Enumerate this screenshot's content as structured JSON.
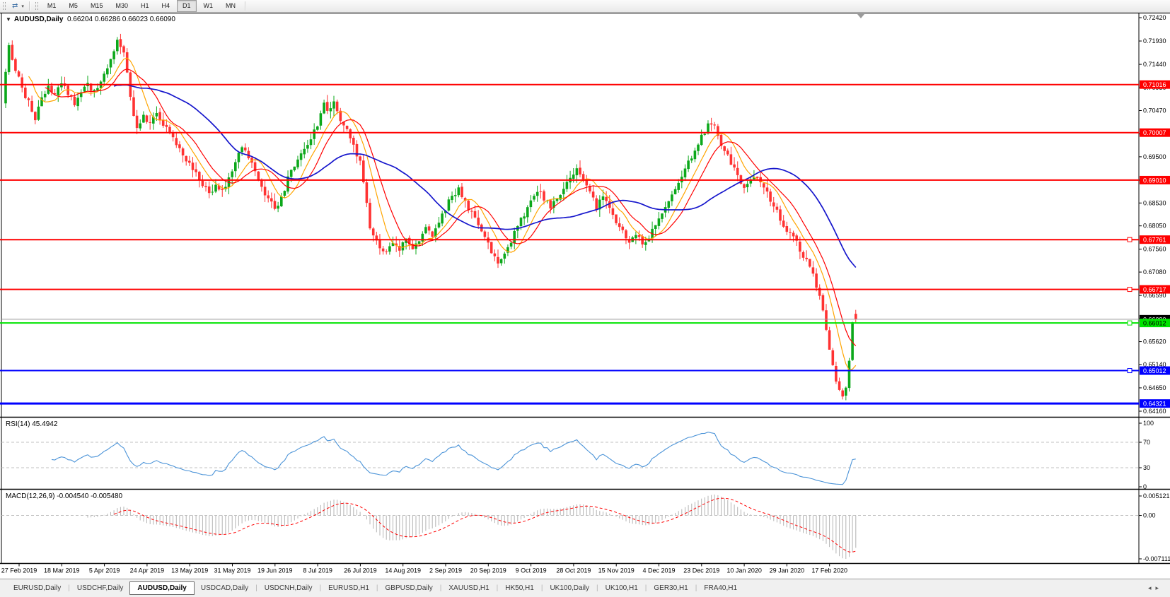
{
  "toolbar": {
    "tool_icon": "⇄",
    "dropdown_caret": "▾",
    "timeframes": [
      {
        "label": "M1",
        "active": false
      },
      {
        "label": "M5",
        "active": false
      },
      {
        "label": "M15",
        "active": false
      },
      {
        "label": "M30",
        "active": false
      },
      {
        "label": "H1",
        "active": false
      },
      {
        "label": "H4",
        "active": false
      },
      {
        "label": "D1",
        "active": true
      },
      {
        "label": "W1",
        "active": false
      },
      {
        "label": "MN",
        "active": false
      }
    ]
  },
  "chart_header": {
    "dropdown_glyph": "▼",
    "title": "AUDUSD,Daily",
    "quote_text": "0.66204 0.66286 0.66023 0.66090"
  },
  "panes": {
    "rsi_label": "RSI(14) 45.4942",
    "macd_label": "MACD(12,26,9) -0.004540 -0.005480"
  },
  "tabs": {
    "items": [
      {
        "label": "EURUSD,Daily",
        "active": false
      },
      {
        "label": "USDCHF,Daily",
        "active": false
      },
      {
        "label": "AUDUSD,Daily",
        "active": true
      },
      {
        "label": "USDCAD,Daily",
        "active": false
      },
      {
        "label": "USDCNH,Daily",
        "active": false
      },
      {
        "label": "EURUSD,H1",
        "active": false
      },
      {
        "label": "GBPUSD,Daily",
        "active": false
      },
      {
        "label": "XAUUSD,H1",
        "active": false
      },
      {
        "label": "HK50,H1",
        "active": false
      },
      {
        "label": "UK100,Daily",
        "active": false
      },
      {
        "label": "UK100,H1",
        "active": false
      },
      {
        "label": "GER30,H1",
        "active": false
      },
      {
        "label": "FRA40,H1",
        "active": false
      }
    ],
    "nav_left": "◂",
    "nav_right": "▸"
  },
  "chart_data": {
    "type": "candlestick",
    "symbol": "AUDUSD",
    "period": "Daily",
    "quote": {
      "open": 0.66204,
      "high": 0.66286,
      "low": 0.66023,
      "close": 0.6609
    },
    "current_price": 0.6609,
    "candle_count": 260,
    "y_axis_ticks": [
      "0.72420",
      "0.71930",
      "0.71440",
      "0.70950",
      "0.70470",
      "0.69980",
      "0.69500",
      "0.69010",
      "0.68530",
      "0.68050",
      "0.67560",
      "0.67080",
      "0.66590",
      "0.66100",
      "0.65620",
      "0.65140",
      "0.64650",
      "0.64160"
    ],
    "x_axis_dates": [
      "27 Feb 2019",
      "18 Mar 2019",
      "5 Apr 2019",
      "24 Apr 2019",
      "13 May 2019",
      "31 May 2019",
      "19 Jun 2019",
      "8 Jul 2019",
      "26 Jul 2019",
      "14 Aug 2019",
      "2 Sep 2019",
      "20 Sep 2019",
      "9 Oct 2019",
      "28 Oct 2019",
      "15 Nov 2019",
      "4 Dec 2019",
      "23 Dec 2019",
      "10 Jan 2020",
      "29 Jan 2020",
      "17 Feb 2020"
    ],
    "horizontal_lines": [
      {
        "price": 0.71016,
        "label": "0.71016",
        "color": "#ff0000",
        "text": "#ffffff",
        "width": 2,
        "handle": false
      },
      {
        "price": 0.70007,
        "label": "0.70007",
        "color": "#ff0000",
        "text": "#ffffff",
        "width": 2,
        "handle": false
      },
      {
        "price": 0.6901,
        "label": "0.69010",
        "color": "#ff0000",
        "text": "#ffffff",
        "width": 2,
        "handle": false
      },
      {
        "price": 0.67761,
        "label": "0.67761",
        "color": "#ff0000",
        "text": "#ffffff",
        "width": 2,
        "handle": true
      },
      {
        "price": 0.66717,
        "label": "0.66717",
        "color": "#ff0000",
        "text": "#ffffff",
        "width": 2,
        "handle": true
      },
      {
        "price": 0.66012,
        "label": "0.66012",
        "color": "#00e400",
        "text": "#000000",
        "width": 2,
        "handle": true
      },
      {
        "price": 0.65012,
        "label": "0.65012",
        "color": "#0000ff",
        "text": "#ffffff",
        "width": 2,
        "handle": true
      },
      {
        "price": 0.64321,
        "label": "0.64321",
        "color": "#0000ff",
        "text": "#ffffff",
        "width": 3,
        "handle": false
      }
    ],
    "price_anchors": [
      [
        0,
        0.7135
      ],
      [
        1,
        0.719
      ],
      [
        3,
        0.7128
      ],
      [
        5,
        0.7098
      ],
      [
        7,
        0.7062
      ],
      [
        9,
        0.7032
      ],
      [
        11,
        0.7068
      ],
      [
        13,
        0.7094
      ],
      [
        15,
        0.7076
      ],
      [
        17,
        0.7104
      ],
      [
        19,
        0.7086
      ],
      [
        21,
        0.7062
      ],
      [
        23,
        0.7082
      ],
      [
        25,
        0.71
      ],
      [
        27,
        0.7088
      ],
      [
        29,
        0.7108
      ],
      [
        31,
        0.714
      ],
      [
        33,
        0.7176
      ],
      [
        34,
        0.7196
      ],
      [
        36,
        0.717
      ],
      [
        37,
        0.7128
      ],
      [
        38,
        0.7076
      ],
      [
        40,
        0.7008
      ],
      [
        42,
        0.7032
      ],
      [
        44,
        0.7018
      ],
      [
        46,
        0.7042
      ],
      [
        48,
        0.7022
      ],
      [
        50,
        0.7
      ],
      [
        52,
        0.6978
      ],
      [
        54,
        0.6952
      ],
      [
        56,
        0.694
      ],
      [
        58,
        0.6918
      ],
      [
        60,
        0.6892
      ],
      [
        62,
        0.6872
      ],
      [
        64,
        0.6894
      ],
      [
        66,
        0.6874
      ],
      [
        68,
        0.6902
      ],
      [
        70,
        0.6942
      ],
      [
        72,
        0.6972
      ],
      [
        74,
        0.6948
      ],
      [
        76,
        0.6914
      ],
      [
        78,
        0.6886
      ],
      [
        80,
        0.6862
      ],
      [
        82,
        0.684
      ],
      [
        84,
        0.6868
      ],
      [
        86,
        0.6902
      ],
      [
        88,
        0.6932
      ],
      [
        90,
        0.6958
      ],
      [
        92,
        0.698
      ],
      [
        94,
        0.7004
      ],
      [
        96,
        0.7036
      ],
      [
        97,
        0.7058
      ],
      [
        98,
        0.704
      ],
      [
        100,
        0.706
      ],
      [
        102,
        0.7032
      ],
      [
        104,
        0.7002
      ],
      [
        106,
        0.697
      ],
      [
        108,
        0.694
      ],
      [
        109,
        0.6898
      ],
      [
        110,
        0.6852
      ],
      [
        111,
        0.6806
      ],
      [
        112,
        0.678
      ],
      [
        114,
        0.6762
      ],
      [
        116,
        0.6744
      ],
      [
        118,
        0.677
      ],
      [
        120,
        0.6756
      ],
      [
        122,
        0.6774
      ],
      [
        124,
        0.6752
      ],
      [
        126,
        0.6778
      ],
      [
        128,
        0.6802
      ],
      [
        130,
        0.6788
      ],
      [
        132,
        0.6814
      ],
      [
        134,
        0.6842
      ],
      [
        136,
        0.6866
      ],
      [
        138,
        0.6882
      ],
      [
        140,
        0.6858
      ],
      [
        142,
        0.683
      ],
      [
        144,
        0.6802
      ],
      [
        146,
        0.6776
      ],
      [
        148,
        0.6752
      ],
      [
        150,
        0.6722
      ],
      [
        152,
        0.6748
      ],
      [
        154,
        0.6774
      ],
      [
        156,
        0.6802
      ],
      [
        158,
        0.683
      ],
      [
        160,
        0.6856
      ],
      [
        162,
        0.6882
      ],
      [
        164,
        0.6862
      ],
      [
        166,
        0.6842
      ],
      [
        168,
        0.6864
      ],
      [
        170,
        0.6888
      ],
      [
        172,
        0.6906
      ],
      [
        174,
        0.6924
      ],
      [
        176,
        0.6898
      ],
      [
        178,
        0.6872
      ],
      [
        180,
        0.6846
      ],
      [
        182,
        0.6866
      ],
      [
        184,
        0.6842
      ],
      [
        186,
        0.6816
      ],
      [
        188,
        0.6792
      ],
      [
        190,
        0.6768
      ],
      [
        192,
        0.6786
      ],
      [
        194,
        0.6764
      ],
      [
        196,
        0.678
      ],
      [
        198,
        0.6806
      ],
      [
        200,
        0.6832
      ],
      [
        202,
        0.686
      ],
      [
        204,
        0.6886
      ],
      [
        206,
        0.6914
      ],
      [
        208,
        0.694
      ],
      [
        210,
        0.6966
      ],
      [
        212,
        0.6994
      ],
      [
        214,
        0.7016
      ],
      [
        215,
        0.7022
      ],
      [
        217,
        0.6996
      ],
      [
        219,
        0.6964
      ],
      [
        221,
        0.6936
      ],
      [
        223,
        0.6908
      ],
      [
        225,
        0.6884
      ],
      [
        227,
        0.6898
      ],
      [
        229,
        0.6912
      ],
      [
        231,
        0.6886
      ],
      [
        233,
        0.686
      ],
      [
        235,
        0.6834
      ],
      [
        237,
        0.6808
      ],
      [
        239,
        0.6788
      ],
      [
        241,
        0.6768
      ],
      [
        243,
        0.6744
      ],
      [
        245,
        0.672
      ],
      [
        246,
        0.6702
      ],
      [
        247,
        0.6682
      ],
      [
        248,
        0.6656
      ],
      [
        249,
        0.6622
      ],
      [
        250,
        0.6582
      ],
      [
        251,
        0.6546
      ],
      [
        252,
        0.6512
      ],
      [
        253,
        0.6482
      ],
      [
        254,
        0.6458
      ],
      [
        255,
        0.6446
      ],
      [
        256,
        0.6472
      ],
      [
        257,
        0.652
      ],
      [
        258,
        0.66
      ],
      [
        259,
        0.6609
      ]
    ],
    "moving_averages": [
      {
        "period": 8,
        "color": "#ffa500",
        "width": 1.2
      },
      {
        "period": 13,
        "color": "#ff0000",
        "width": 1.2
      },
      {
        "period": 34,
        "color": "#1616cc",
        "width": 1.7
      }
    ],
    "indicators": [
      {
        "name": "RSI",
        "params": 14,
        "value": 45.4942,
        "axis_labels": [
          "100",
          "70",
          "30",
          "0"
        ],
        "levels": [
          70,
          30
        ],
        "color": "#4c94d8"
      },
      {
        "name": "MACD",
        "params": "12,26,9",
        "value": -0.00454,
        "signal": -0.00548,
        "axis_labels": [
          "0.005121",
          "0.00",
          "-0.007111"
        ],
        "hist_color": "#b4b4b4",
        "signal_color": "#ff0000"
      }
    ],
    "colors": {
      "background": "#ffffff",
      "up": "#0ca81b",
      "down": "#ff3232",
      "axis_text": "#000000",
      "current_price_line": "#9a9a9a",
      "current_price_box": "#000000",
      "level_dash": "#c0c0c0"
    }
  }
}
